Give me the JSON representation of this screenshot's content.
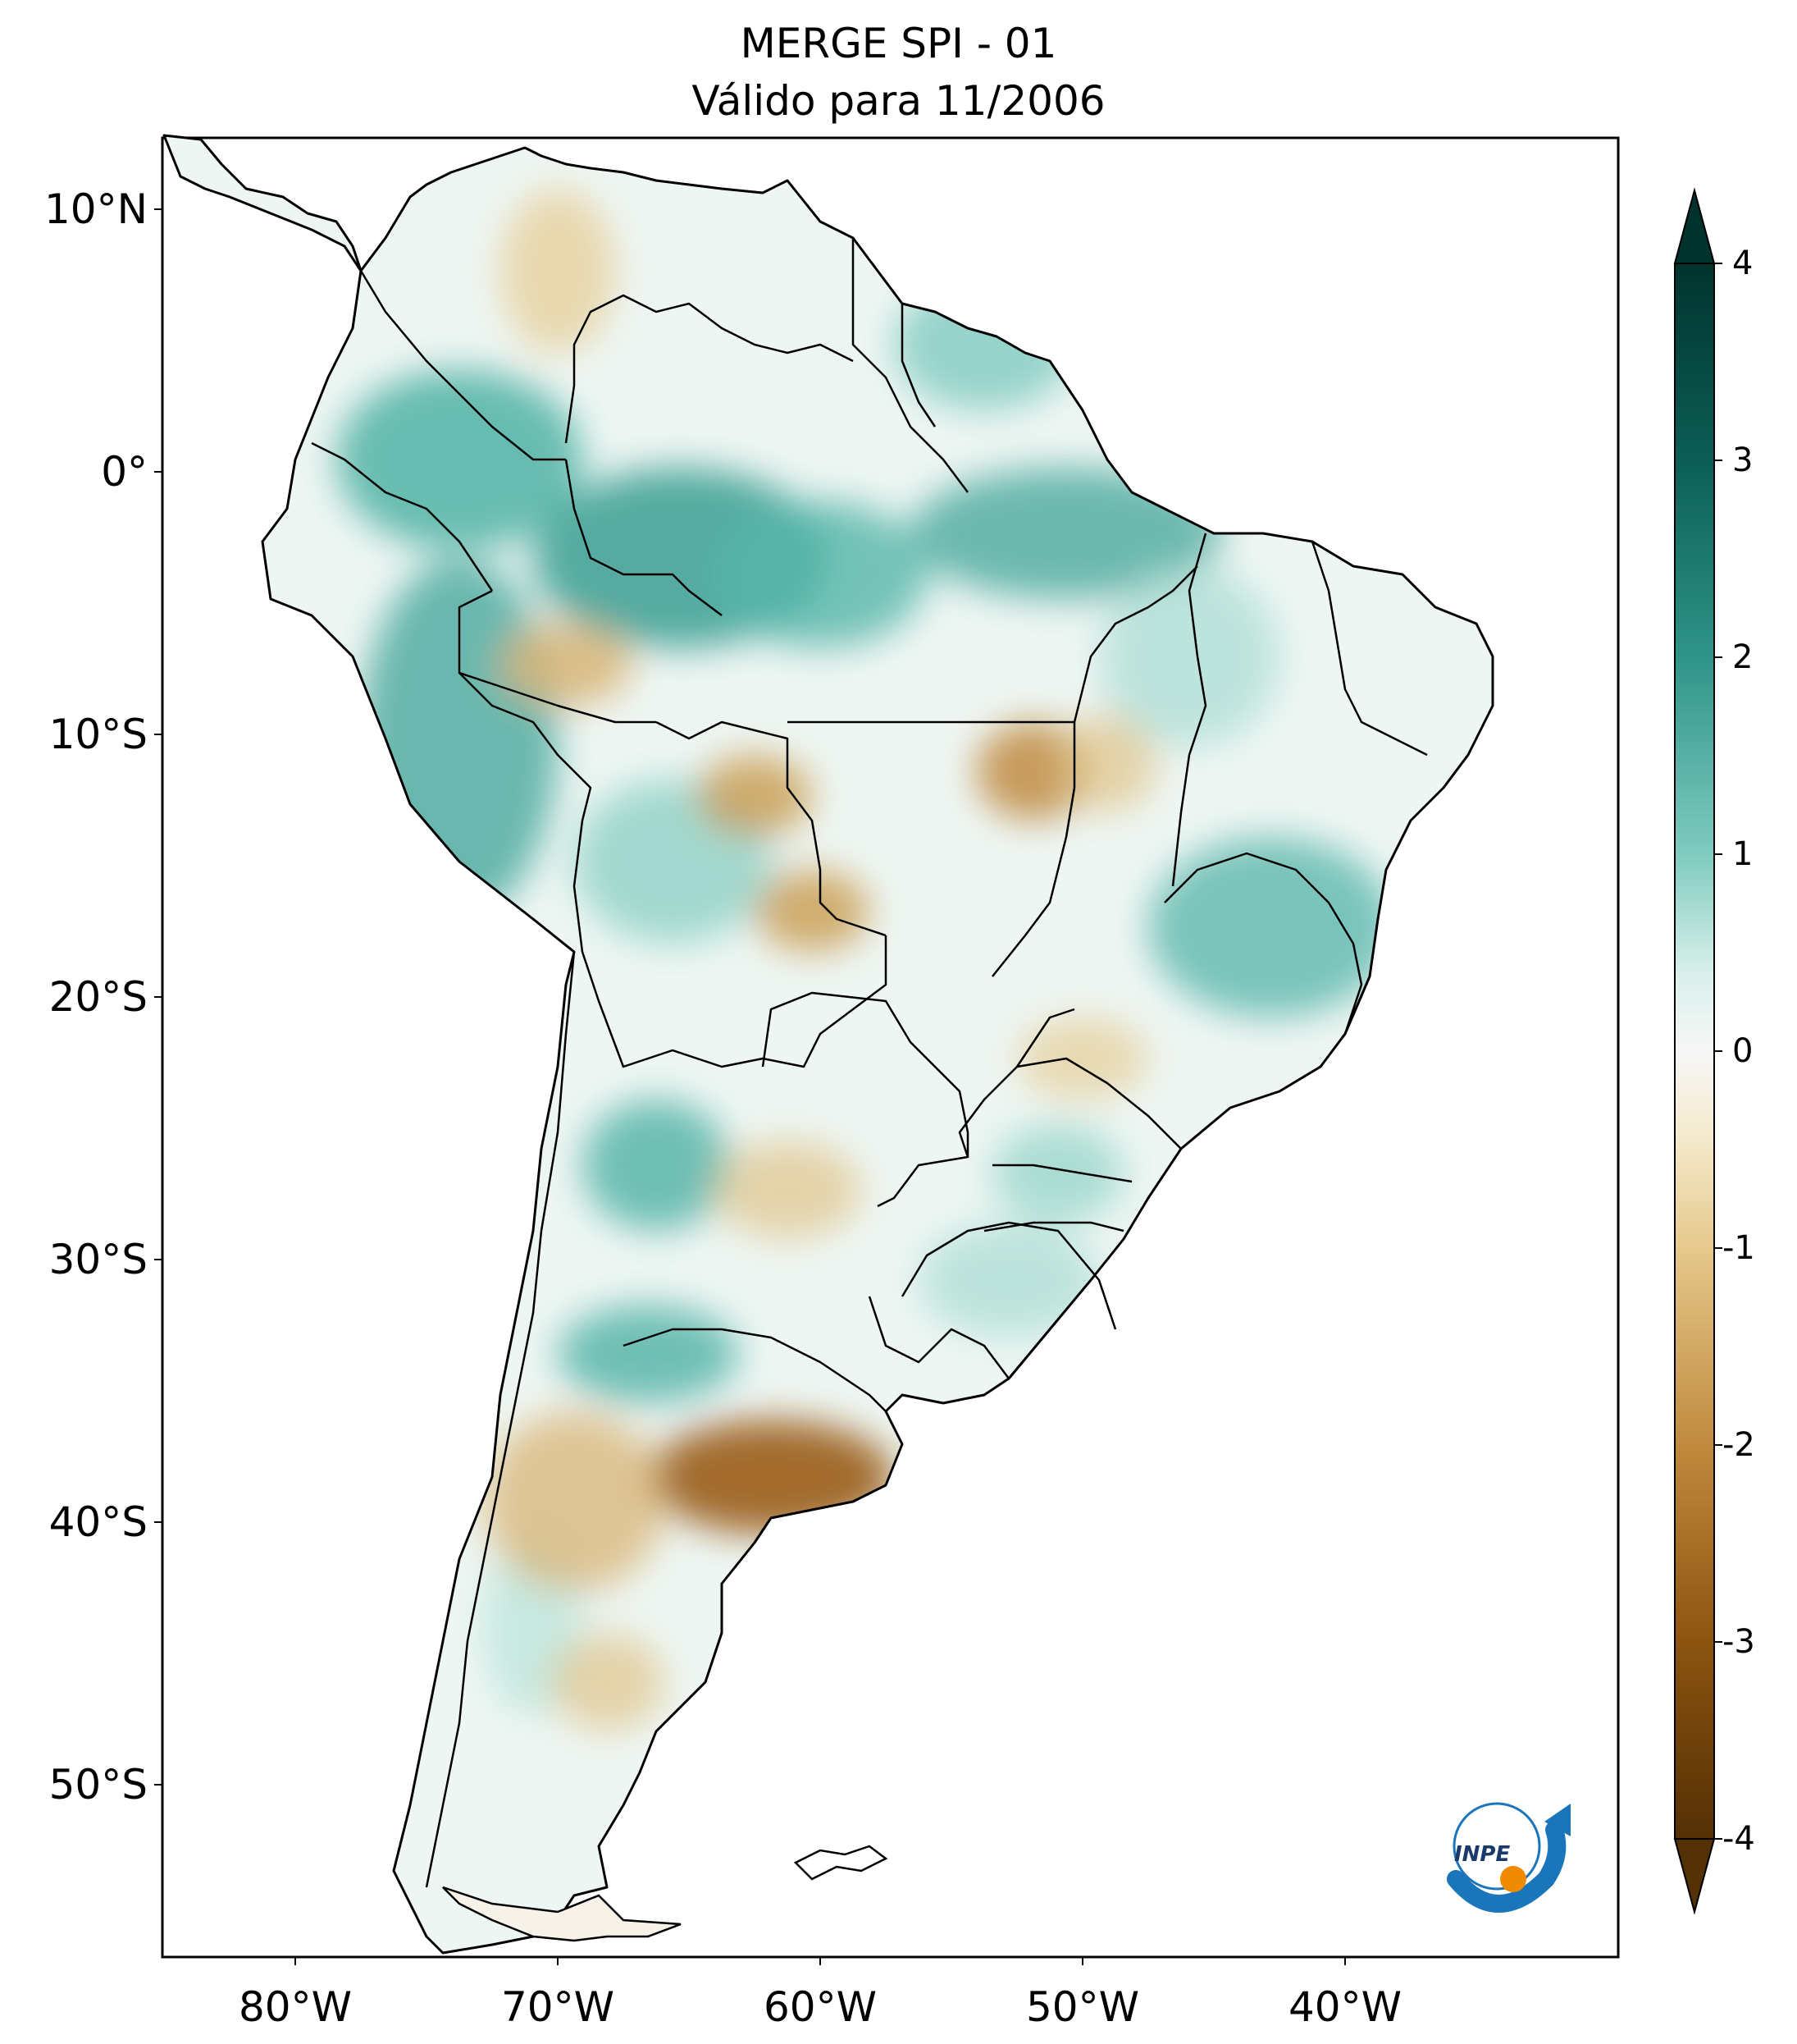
{
  "title": {
    "line1": "MERGE   SPI - 01",
    "line2": "Válido para 11/2006"
  },
  "map": {
    "region": "South America",
    "lon_range": [
      -85,
      -30
    ],
    "lat_range": [
      -56,
      13
    ],
    "lat_ticks": [
      "10°N",
      "0°",
      "10°S",
      "20°S",
      "30°S",
      "40°S",
      "50°S"
    ],
    "lon_ticks": [
      "80°W",
      "70°W",
      "60°W",
      "50°W",
      "40°W"
    ]
  },
  "colorbar": {
    "ticks": [
      "4",
      "3",
      "2",
      "1",
      "0",
      "-1",
      "-2",
      "-3",
      "-4"
    ],
    "range": [
      -4,
      4
    ],
    "colors": {
      "wet_max": "#01332e",
      "wet_strong": "#117b70",
      "wet_mid": "#51b0a4",
      "wet_light": "#bfe6df",
      "neutral": "#f7f7f7",
      "dry_light": "#f2e2b8",
      "dry_mid": "#c89a4e",
      "dry_strong": "#9a5c14",
      "dry_max": "#543005"
    }
  },
  "logo": {
    "text": "INPE",
    "icon": "inpe-logo-icon"
  }
}
